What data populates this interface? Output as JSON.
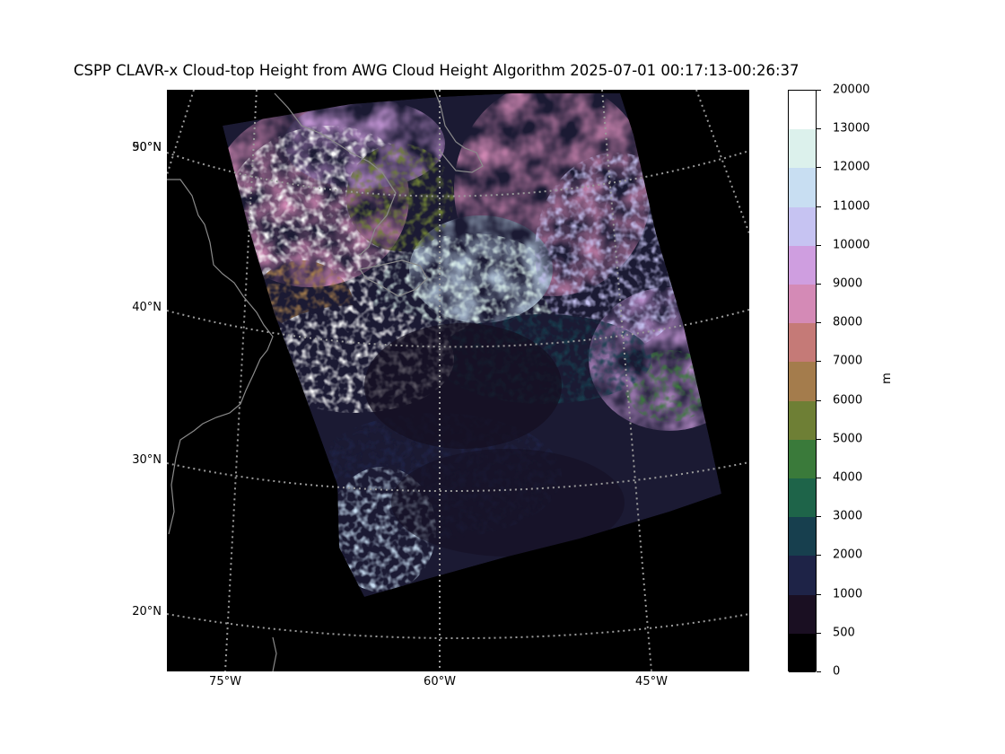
{
  "title": "CSPP CLAVR-x Cloud-top Height from AWG Cloud Height Algorithm 2025-07-01 00:17:13-00:26:37",
  "map": {
    "lat_labels": [
      "50°N",
      "90°N",
      "40°N",
      "30°N",
      "20°N"
    ],
    "lon_labels": [
      "75°W",
      "60°W",
      "45°W"
    ],
    "background_color": "#000000",
    "gridline_color": "#9a9a9a",
    "coastline_color": "#8a8a8a"
  },
  "colorbar": {
    "unit": "m",
    "tick_labels": [
      "20000",
      "13000",
      "12000",
      "11000",
      "10000",
      "9000",
      "8000",
      "7000",
      "6000",
      "5000",
      "4000",
      "3000",
      "2000",
      "1000",
      "500",
      "0"
    ],
    "colors": [
      "#000000",
      "#1a0f22",
      "#1e2347",
      "#173f4e",
      "#1e6449",
      "#3a7a3a",
      "#6e7f35",
      "#a47c4c",
      "#c57a77",
      "#d48ab6",
      "#cf9ee0",
      "#c6c3f2",
      "#c8def2",
      "#dcf1ec",
      "#ffffff"
    ]
  }
}
